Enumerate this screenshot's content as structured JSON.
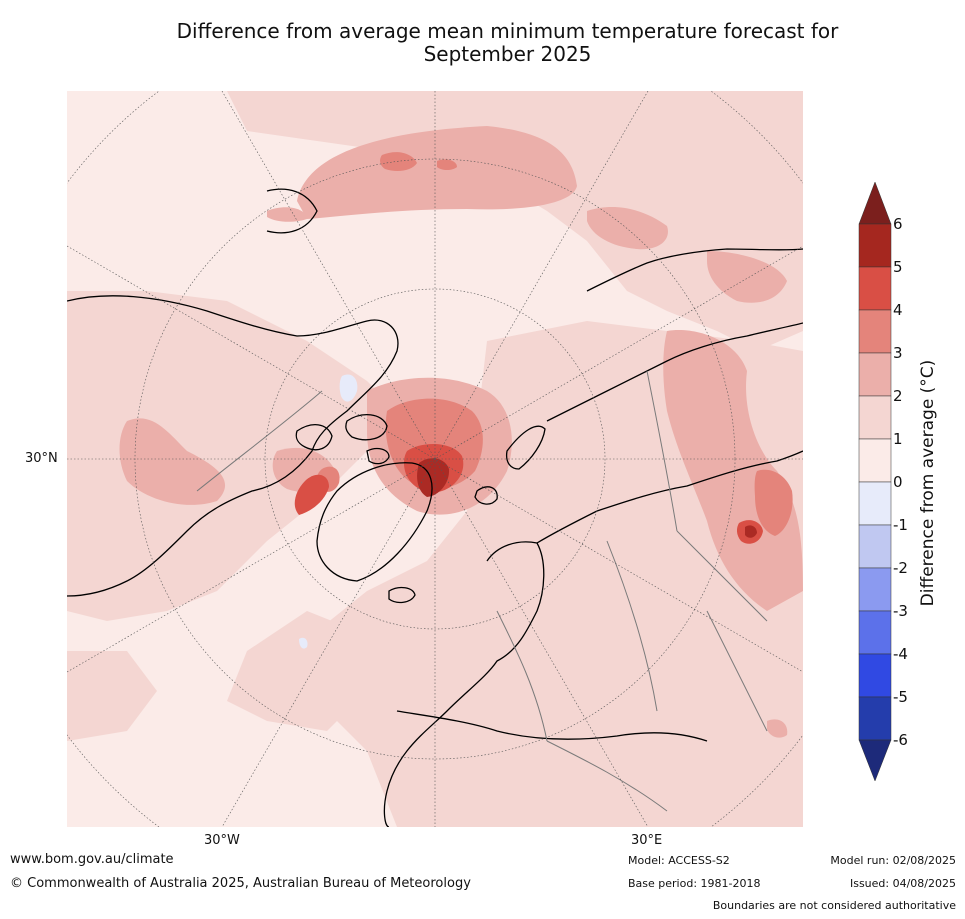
{
  "title": {
    "line1": "Difference from average mean minimum temperature forecast for",
    "line2": "September 2025"
  },
  "map": {
    "projection": "north-polar-stereographic",
    "lat_label": "30°N",
    "lon_labels": [
      "30°W",
      "30°E"
    ],
    "fill_colors": {
      "range_0_1": "#fbebe8",
      "range_1_2": "#f4d6d2",
      "range_2_3": "#ebafaa",
      "range_3_4": "#e4847b",
      "range_4_5": "#d94f45",
      "range_5_6": "#ab2a24",
      "range_6_plus": "#7b1f1d",
      "range_m1_0": "#e7ebfa"
    },
    "coastline_color": "#000000",
    "border_color": "#7a7a7a"
  },
  "colorbar": {
    "title": "Difference from average (°C)",
    "ticks": [
      "6",
      "5",
      "4",
      "3",
      "2",
      "1",
      "0",
      "-1",
      "-2",
      "-3",
      "-4",
      "-5",
      "-6"
    ],
    "colors": [
      "#a5271f",
      "#d94f45",
      "#e4847b",
      "#ebafaa",
      "#f4d6d2",
      "#fbebe8",
      "#e7ebfa",
      "#c0c8f1",
      "#8b9af0",
      "#5c71ea",
      "#3049e3",
      "#243dac"
    ],
    "over_color": "#7b1f1d",
    "under_color": "#1d2a7a"
  },
  "footer": {
    "website": "www.bom.gov.au/climate",
    "copyright": "© Commonwealth of Australia 2025, Australian Bureau of Meteorology",
    "model": "Model: ACCESS-S2",
    "base_period": "Base period: 1981-2018",
    "model_run": "Model run: 02/08/2025",
    "issued": "Issued: 04/08/2025",
    "disclaimer": "Boundaries are not considered authoritative"
  }
}
